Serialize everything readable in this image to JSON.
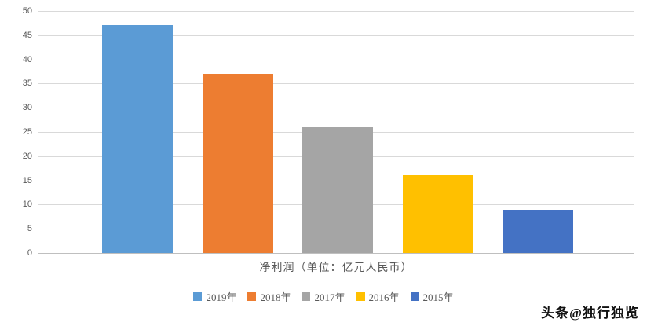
{
  "chart_data": {
    "type": "bar",
    "categories": [
      "2019年",
      "2018年",
      "2017年",
      "2016年",
      "2015年"
    ],
    "values": [
      47,
      37,
      26,
      16,
      9
    ],
    "colors": [
      "#5B9BD5",
      "#ED7D31",
      "#A5A5A5",
      "#FFC000",
      "#4472C4"
    ],
    "title": "",
    "xlabel": "净利润（单位：亿元人民币）",
    "ylabel": "",
    "ylim": [
      0,
      50
    ],
    "ytick_step": 5,
    "grid": true,
    "legend_position": "bottom"
  },
  "watermark": "头条@独行独览"
}
